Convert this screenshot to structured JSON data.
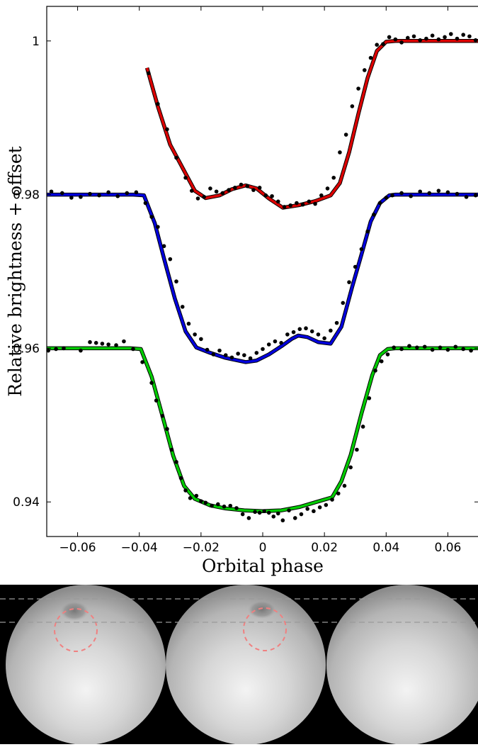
{
  "chart_data": {
    "type": "line",
    "title": "",
    "xlabel": "Orbital phase",
    "ylabel": "Relative brightness + offset",
    "xlim": [
      -0.07,
      0.07
    ],
    "ylim": [
      0.9355,
      1.0045
    ],
    "x_ticks": [
      -0.06,
      -0.04,
      -0.02,
      0,
      0.02,
      0.04,
      0.06
    ],
    "x_tick_labels": [
      "−0.06",
      "−0.04",
      "−0.02",
      "0",
      "0.02",
      "0.04",
      "0.06"
    ],
    "y_ticks": [
      0.94,
      0.96,
      0.98,
      1.0
    ],
    "y_tick_labels": [
      "0.94",
      "0.96",
      "0.98",
      "1"
    ],
    "grid": false,
    "series": [
      {
        "color": "#dd0000",
        "model": {
          "x": [
            -0.0375,
            -0.034,
            -0.03,
            -0.026,
            -0.022,
            -0.0185,
            -0.014,
            -0.01,
            -0.0055,
            -0.002,
            0.002,
            0.0065,
            0.012,
            0.017,
            0.022,
            0.025,
            0.028,
            0.031,
            0.034,
            0.037,
            0.04,
            0.043,
            0.05,
            0.06,
            0.07
          ],
          "y": [
            0.9965,
            0.9915,
            0.9865,
            0.9835,
            0.9805,
            0.97955,
            0.9799,
            0.9807,
            0.9812,
            0.9808,
            0.9795,
            0.9783,
            0.97865,
            0.97915,
            0.9799,
            0.9815,
            0.9855,
            0.9905,
            0.9952,
            0.9987,
            0.9999,
            1.0,
            1.0,
            1.0,
            1.0
          ]
        },
        "points": {
          "x": [
            -0.037,
            -0.034,
            -0.031,
            -0.028,
            -0.025,
            -0.023,
            -0.021,
            -0.019,
            -0.017,
            -0.015,
            -0.013,
            -0.011,
            -0.009,
            -0.007,
            -0.005,
            -0.003,
            -0.001,
            0.001,
            0.003,
            0.005,
            0.007,
            0.009,
            0.011,
            0.013,
            0.015,
            0.017,
            0.019,
            0.021,
            0.023,
            0.025,
            0.027,
            0.029,
            0.031,
            0.033,
            0.035,
            0.037,
            0.039,
            0.041,
            0.043,
            0.045,
            0.047,
            0.049,
            0.051,
            0.053,
            0.055,
            0.057,
            0.059,
            0.061,
            0.063,
            0.065,
            0.067,
            0.069
          ],
          "y": [
            0.9958,
            0.9918,
            0.9885,
            0.9848,
            0.9822,
            0.9805,
            0.9795,
            0.9797,
            0.9808,
            0.9804,
            0.9802,
            0.9806,
            0.9809,
            0.9813,
            0.9811,
            0.9806,
            0.9809,
            0.9799,
            0.9798,
            0.9791,
            0.9784,
            0.9786,
            0.9789,
            0.9787,
            0.9791,
            0.9788,
            0.9799,
            0.9808,
            0.9822,
            0.9855,
            0.9878,
            0.9915,
            0.9938,
            0.9962,
            0.9978,
            0.9995,
            0.9996,
            1.0005,
            1.0002,
            0.9998,
            1.0004,
            1.0006,
            1.0001,
            1.0003,
            1.0007,
            1.0002,
            1.0005,
            1.0009,
            1.0003,
            1.0008,
            1.0006,
            1.0001
          ]
        }
      },
      {
        "color": "#0000dd",
        "model": {
          "x": [
            -0.07,
            -0.06,
            -0.05,
            -0.042,
            -0.0385,
            -0.035,
            -0.032,
            -0.0285,
            -0.025,
            -0.0215,
            -0.017,
            -0.012,
            -0.0055,
            -0.002,
            0.002,
            0.006,
            0.0095,
            0.0115,
            0.0145,
            0.018,
            0.022,
            0.0255,
            0.029,
            0.032,
            0.035,
            0.038,
            0.041,
            0.043,
            0.05,
            0.06,
            0.07
          ],
          "y": [
            0.98,
            0.98,
            0.98,
            0.98,
            0.9799,
            0.9763,
            0.9717,
            0.9665,
            0.9622,
            0.9601,
            0.9594,
            0.95875,
            0.9582,
            0.9584,
            0.9592,
            0.96025,
            0.96125,
            0.96165,
            0.96145,
            0.9608,
            0.9606,
            0.9628,
            0.968,
            0.9722,
            0.9765,
            0.9789,
            0.9799,
            0.98,
            0.98,
            0.98,
            0.98
          ]
        },
        "points": {
          "x": [
            -0.0685,
            -0.065,
            -0.062,
            -0.059,
            -0.056,
            -0.053,
            -0.05,
            -0.047,
            -0.044,
            -0.041,
            -0.038,
            -0.036,
            -0.034,
            -0.032,
            -0.03,
            -0.028,
            -0.026,
            -0.024,
            -0.022,
            -0.02,
            -0.018,
            -0.016,
            -0.014,
            -0.012,
            -0.01,
            -0.008,
            -0.006,
            -0.004,
            -0.002,
            0.0,
            0.002,
            0.004,
            0.006,
            0.008,
            0.01,
            0.012,
            0.014,
            0.016,
            0.018,
            0.02,
            0.022,
            0.024,
            0.026,
            0.028,
            0.03,
            0.032,
            0.034,
            0.036,
            0.038,
            0.04,
            0.042,
            0.045,
            0.048,
            0.051,
            0.054,
            0.057,
            0.06,
            0.063,
            0.066,
            0.069
          ],
          "y": [
            0.9804,
            0.9802,
            0.9796,
            0.9797,
            0.9801,
            0.9799,
            0.9803,
            0.9798,
            0.9802,
            0.9803,
            0.9789,
            0.9771,
            0.9758,
            0.9733,
            0.9716,
            0.9687,
            0.9654,
            0.9632,
            0.9618,
            0.9612,
            0.9598,
            0.9592,
            0.9597,
            0.9591,
            0.9588,
            0.9593,
            0.9591,
            0.9587,
            0.9594,
            0.9599,
            0.9605,
            0.9609,
            0.9607,
            0.9618,
            0.9621,
            0.9625,
            0.9626,
            0.9622,
            0.9618,
            0.9613,
            0.9623,
            0.9633,
            0.9659,
            0.9686,
            0.9706,
            0.9729,
            0.9752,
            0.9774,
            0.9789,
            0.9796,
            0.9799,
            0.9802,
            0.9798,
            0.9804,
            0.9802,
            0.9805,
            0.9803,
            0.9801,
            0.9797,
            0.9799
          ]
        }
      },
      {
        "color": "#00cc00",
        "model": {
          "x": [
            -0.07,
            -0.06,
            -0.05,
            -0.043,
            -0.0395,
            -0.036,
            -0.0325,
            -0.029,
            -0.0255,
            -0.022,
            -0.017,
            -0.012,
            -0.006,
            0.0,
            0.006,
            0.012,
            0.017,
            0.0225,
            0.0255,
            0.0285,
            0.032,
            0.0355,
            0.038,
            0.0405,
            0.043,
            0.05,
            0.06,
            0.07
          ],
          "y": [
            0.96,
            0.96,
            0.96,
            0.96,
            0.9599,
            0.9563,
            0.9512,
            0.946,
            0.9421,
            0.9404,
            0.93955,
            0.93915,
            0.9389,
            0.9388,
            0.9389,
            0.93935,
            0.93995,
            0.9406,
            0.9427,
            0.9461,
            0.9515,
            0.9565,
            0.9591,
            0.9599,
            0.96,
            0.96,
            0.96,
            0.96
          ]
        },
        "points": {
          "x": [
            -0.0695,
            -0.067,
            -0.0645,
            -0.059,
            -0.056,
            -0.054,
            -0.052,
            -0.05,
            -0.0475,
            -0.045,
            -0.042,
            -0.039,
            -0.036,
            -0.0345,
            -0.0325,
            -0.031,
            -0.0295,
            -0.028,
            -0.0265,
            -0.025,
            -0.0235,
            -0.0215,
            -0.02,
            -0.0185,
            -0.0165,
            -0.0145,
            -0.0125,
            -0.0105,
            -0.0085,
            -0.0065,
            -0.0045,
            -0.0025,
            -0.001,
            0.0005,
            0.002,
            0.0035,
            0.005,
            0.0065,
            0.0085,
            0.0105,
            0.0125,
            0.0145,
            0.0165,
            0.0185,
            0.0205,
            0.0225,
            0.0245,
            0.0265,
            0.0285,
            0.0305,
            0.0325,
            0.0345,
            0.0365,
            0.0385,
            0.0405,
            0.0425,
            0.045,
            0.0475,
            0.05,
            0.0525,
            0.055,
            0.0575,
            0.06,
            0.0625,
            0.065,
            0.0675
          ],
          "y": [
            0.9597,
            0.9599,
            0.96,
            0.9597,
            0.9608,
            0.9607,
            0.9606,
            0.9605,
            0.9604,
            0.9609,
            0.9599,
            0.9582,
            0.9555,
            0.9532,
            0.9512,
            0.9495,
            0.9468,
            0.9452,
            0.9431,
            0.9415,
            0.9405,
            0.9408,
            0.9401,
            0.9399,
            0.9395,
            0.9397,
            0.9394,
            0.9395,
            0.9392,
            0.9384,
            0.9379,
            0.9387,
            0.9386,
            0.9388,
            0.9386,
            0.9381,
            0.9385,
            0.9376,
            0.9389,
            0.9379,
            0.9384,
            0.9391,
            0.9388,
            0.9393,
            0.9396,
            0.9403,
            0.9411,
            0.9421,
            0.9445,
            0.9468,
            0.9498,
            0.9535,
            0.9571,
            0.9583,
            0.9592,
            0.9601,
            0.9599,
            0.9603,
            0.9601,
            0.9602,
            0.9598,
            0.9601,
            0.9598,
            0.9602,
            0.9599,
            0.9597
          ]
        }
      }
    ]
  }
}
